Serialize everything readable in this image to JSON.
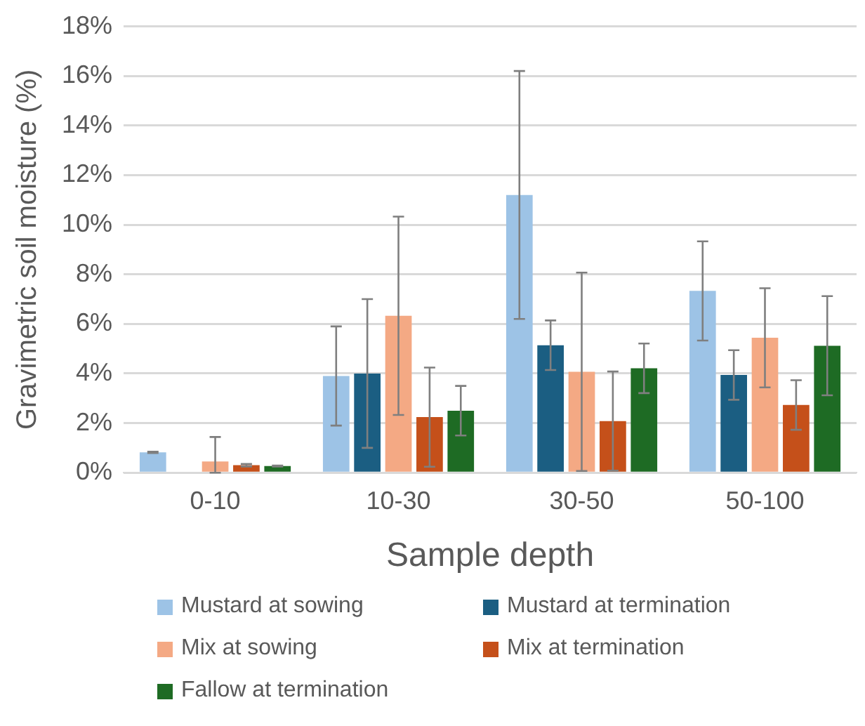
{
  "chart_data": {
    "type": "bar",
    "xlabel": "Sample depth",
    "ylabel": "Gravimetric soil moisture (%)",
    "categories": [
      "0-10",
      "10-30",
      "30-50",
      "50-100"
    ],
    "series": [
      {
        "name": "Mustard at sowing",
        "color": "#9dc3e6",
        "values": [
          0.82,
          3.9,
          11.2,
          7.33
        ],
        "errors": [
          0.03,
          2.0,
          5.0,
          2.0
        ]
      },
      {
        "name": "Mustard at termination",
        "color": "#1b5e82",
        "values": [
          null,
          4.0,
          5.14,
          3.94
        ],
        "errors": [
          null,
          3.0,
          1.0,
          1.0
        ]
      },
      {
        "name": "Mix at sowing",
        "color": "#f4a984",
        "values": [
          0.45,
          6.33,
          4.07,
          5.44
        ],
        "errors": [
          [
            0,
            1.44
          ],
          4.0,
          4.0,
          2.0
        ]
      },
      {
        "name": "Mix at termination",
        "color": "#c5501a",
        "values": [
          0.3,
          2.24,
          2.08,
          2.73
        ],
        "errors": [
          0.05,
          2.0,
          2.0,
          1.0
        ]
      },
      {
        "name": "Fallow at termination",
        "color": "#1e6b24",
        "values": [
          0.27,
          2.5,
          4.21,
          5.12
        ],
        "errors": [
          0.02,
          1.0,
          1.0,
          2.0
        ]
      }
    ],
    "ylim": [
      0,
      18
    ],
    "yticks": [
      {
        "value": 0,
        "label": "0%"
      },
      {
        "value": 2,
        "label": "2%"
      },
      {
        "value": 4,
        "label": "4%"
      },
      {
        "value": 6,
        "label": "6%"
      },
      {
        "value": 8,
        "label": "8%"
      },
      {
        "value": 10,
        "label": "10%"
      },
      {
        "value": 12,
        "label": "12%"
      },
      {
        "value": 14,
        "label": "14%"
      },
      {
        "value": 16,
        "label": "16%"
      },
      {
        "value": 18,
        "label": "18%"
      }
    ],
    "grid": "y",
    "legend": "bottom"
  }
}
